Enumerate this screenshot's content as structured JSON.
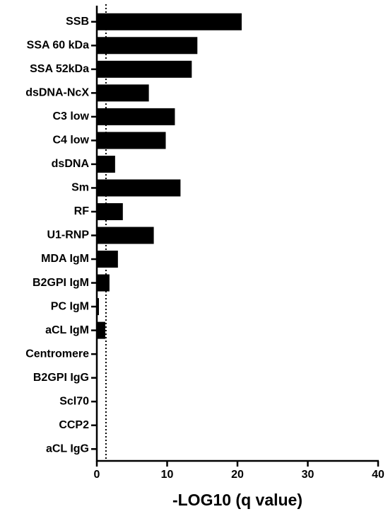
{
  "chart_data": {
    "type": "hbar",
    "x_label": "-LOG10 (q value)",
    "categories": [
      "SSB",
      "SSA 60 kDa",
      "SSA 52kDa",
      "dsDNA-NcX",
      "C3 low",
      "C4 low",
      "dsDNA",
      "Sm",
      "RF",
      "U1-RNP",
      "MDA IgM",
      "B2GPI IgM",
      "PC IgM",
      "aCL IgM",
      "Centromere",
      "B2GPI IgG",
      "Scl70",
      "CCP2",
      "aCL IgG"
    ],
    "values": [
      20.6,
      14.3,
      13.5,
      7.4,
      11.1,
      9.8,
      2.6,
      11.9,
      3.7,
      8.1,
      3.0,
      1.8,
      0.3,
      1.2,
      0,
      0,
      0,
      0,
      0
    ],
    "color": "#000000",
    "xlim": [
      0,
      40
    ],
    "xticks": [
      0,
      10,
      20,
      30,
      40
    ],
    "ref_line": 1.3
  }
}
